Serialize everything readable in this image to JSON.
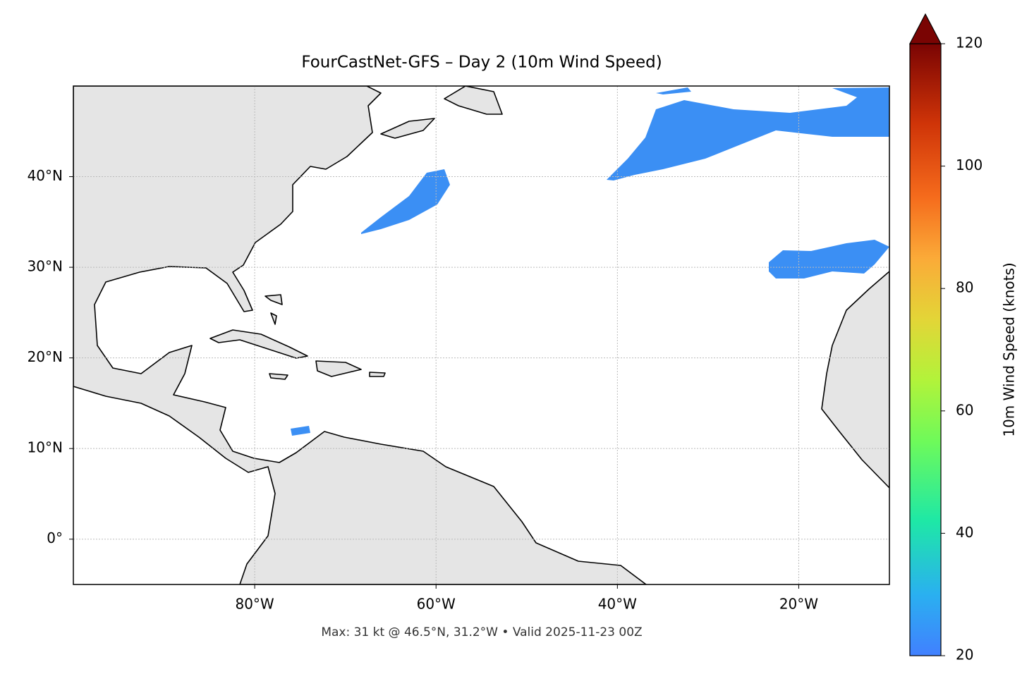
{
  "chart_data": {
    "type": "map",
    "title": "FourCastNet-GFS – Day 2 (10m Wind Speed)",
    "note": "Max: 31 kt @ 46.5°N, 31.2°W • Valid 2025-11-23 00Z",
    "xlim": [
      -100,
      -10
    ],
    "ylim": [
      -5,
      50
    ],
    "xticks": [
      {
        "value": -80,
        "label": "80°W"
      },
      {
        "value": -60,
        "label": "60°W"
      },
      {
        "value": -40,
        "label": "40°W"
      },
      {
        "value": -20,
        "label": "20°W"
      }
    ],
    "yticks": [
      {
        "value": 0,
        "label": "0°"
      },
      {
        "value": 10,
        "label": "10°N"
      },
      {
        "value": 20,
        "label": "20°N"
      },
      {
        "value": 30,
        "label": "30°N"
      },
      {
        "value": 40,
        "label": "40°N"
      }
    ],
    "grid": true,
    "colorbar": {
      "label": "10m Wind Speed (knots)",
      "lim": [
        20,
        120
      ],
      "ticks": [
        20,
        40,
        60,
        80,
        100,
        120
      ]
    }
  }
}
